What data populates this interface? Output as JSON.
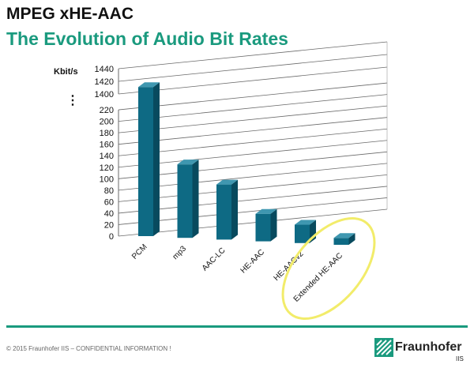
{
  "header": {
    "title": "MPEG xHE-AAC",
    "subtitle": "The Evolution of Audio Bit Rates"
  },
  "colors": {
    "bar_front": "#0e6a84",
    "bar_side": "#084a5e",
    "bar_top": "#3f97b0",
    "accent": "#1a9a7e",
    "highlight": "#f2ec6a"
  },
  "chart_data": {
    "type": "bar",
    "ylabel": "Kbit/s",
    "categories": [
      "PCM",
      "mp3",
      "AAC-LC",
      "HE-AAC",
      "HE-AACv2",
      "Extended HE-AAC"
    ],
    "values": [
      1411,
      128,
      96,
      48,
      32,
      12
    ],
    "axis_break": {
      "from": 220,
      "to": 1400,
      "marker": "⋮"
    },
    "yticks_lower": [
      0,
      20,
      40,
      60,
      80,
      100,
      120,
      140,
      160,
      180,
      200,
      220
    ],
    "yticks_upper": [
      1400,
      1420,
      1440
    ],
    "highlighted_category": "Extended HE-AAC",
    "grid": true
  },
  "footer": {
    "copyright": "© 2015 Fraunhofer IIS  –  CONFIDENTIAL INFORMATION !",
    "logo_text": "Fraunhofer",
    "logo_sub": "IIS"
  }
}
